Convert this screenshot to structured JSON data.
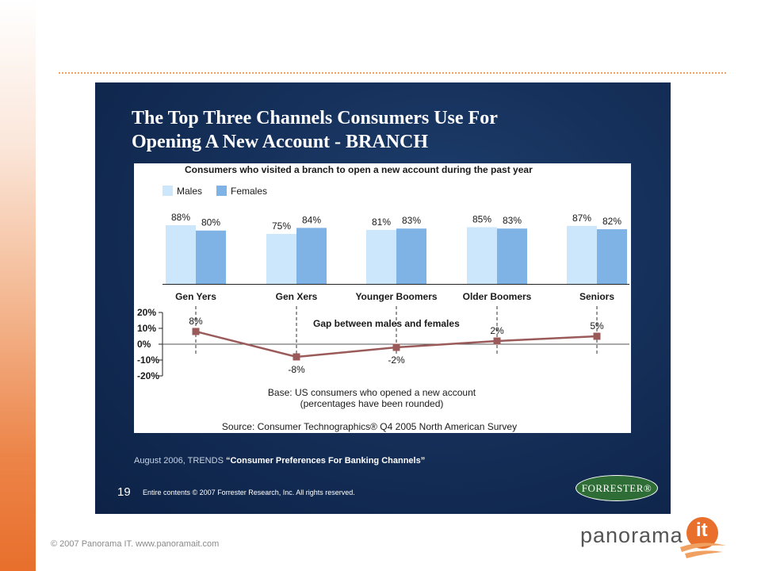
{
  "slide": {
    "title_line1": "The Top Three Channels Consumers Use For",
    "title_line2": "Opening A New Account - BRANCH",
    "source_prefix": "August 2006, TRENDS ",
    "source_report": "“Consumer Preferences For Banking Channels”",
    "page_number": "19",
    "copyright": "Entire contents © 2007  Forrester Research, Inc. All rights reserved.",
    "logo_text": "FORRESTER®"
  },
  "footer": {
    "copyright": "© 2007 Panorama IT. www.panoramait.com",
    "logo_word": "panorama",
    "logo_mark": "it"
  },
  "colors": {
    "males": "#cce6fb",
    "females": "#7fb3e6",
    "gap_line": "#9b5a5a",
    "slide_bg": "#15305a",
    "accent": "#e86f2c"
  },
  "chart_data": [
    {
      "type": "bar",
      "title": "Consumers who visited a branch to open a new account during the past year",
      "categories": [
        "Gen Yers",
        "Gen Xers",
        "Younger Boomers",
        "Older Boomers",
        "Seniors"
      ],
      "series": [
        {
          "name": "Males",
          "values": [
            88,
            75,
            81,
            85,
            87
          ],
          "labels": [
            "88%",
            "75%",
            "81%",
            "85%",
            "87%"
          ]
        },
        {
          "name": "Females",
          "values": [
            80,
            84,
            83,
            83,
            82
          ],
          "labels": [
            "80%",
            "84%",
            "83%",
            "83%",
            "82%"
          ]
        }
      ],
      "legend": "top-left"
    },
    {
      "type": "line",
      "title": "Gap between males and females",
      "categories": [
        "Gen Yers",
        "Gen Xers",
        "Younger Boomers",
        "Older Boomers",
        "Seniors"
      ],
      "values": [
        8,
        -8,
        -2,
        2,
        5
      ],
      "labels": [
        "8%",
        "-8%",
        "-2%",
        "2%",
        "5%"
      ],
      "ylim": [
        -20,
        20
      ],
      "yticks": [
        20,
        10,
        0,
        -10,
        -20
      ],
      "ytick_labels": [
        "20%",
        "10%",
        "0%",
        "-10%",
        "-20%"
      ]
    }
  ],
  "notes": {
    "base_line1": "Base: US consumers who opened a new account",
    "base_line2": "(percentages have been rounded)",
    "source": "Source: Consumer Technographics® Q4 2005 North American Survey"
  }
}
